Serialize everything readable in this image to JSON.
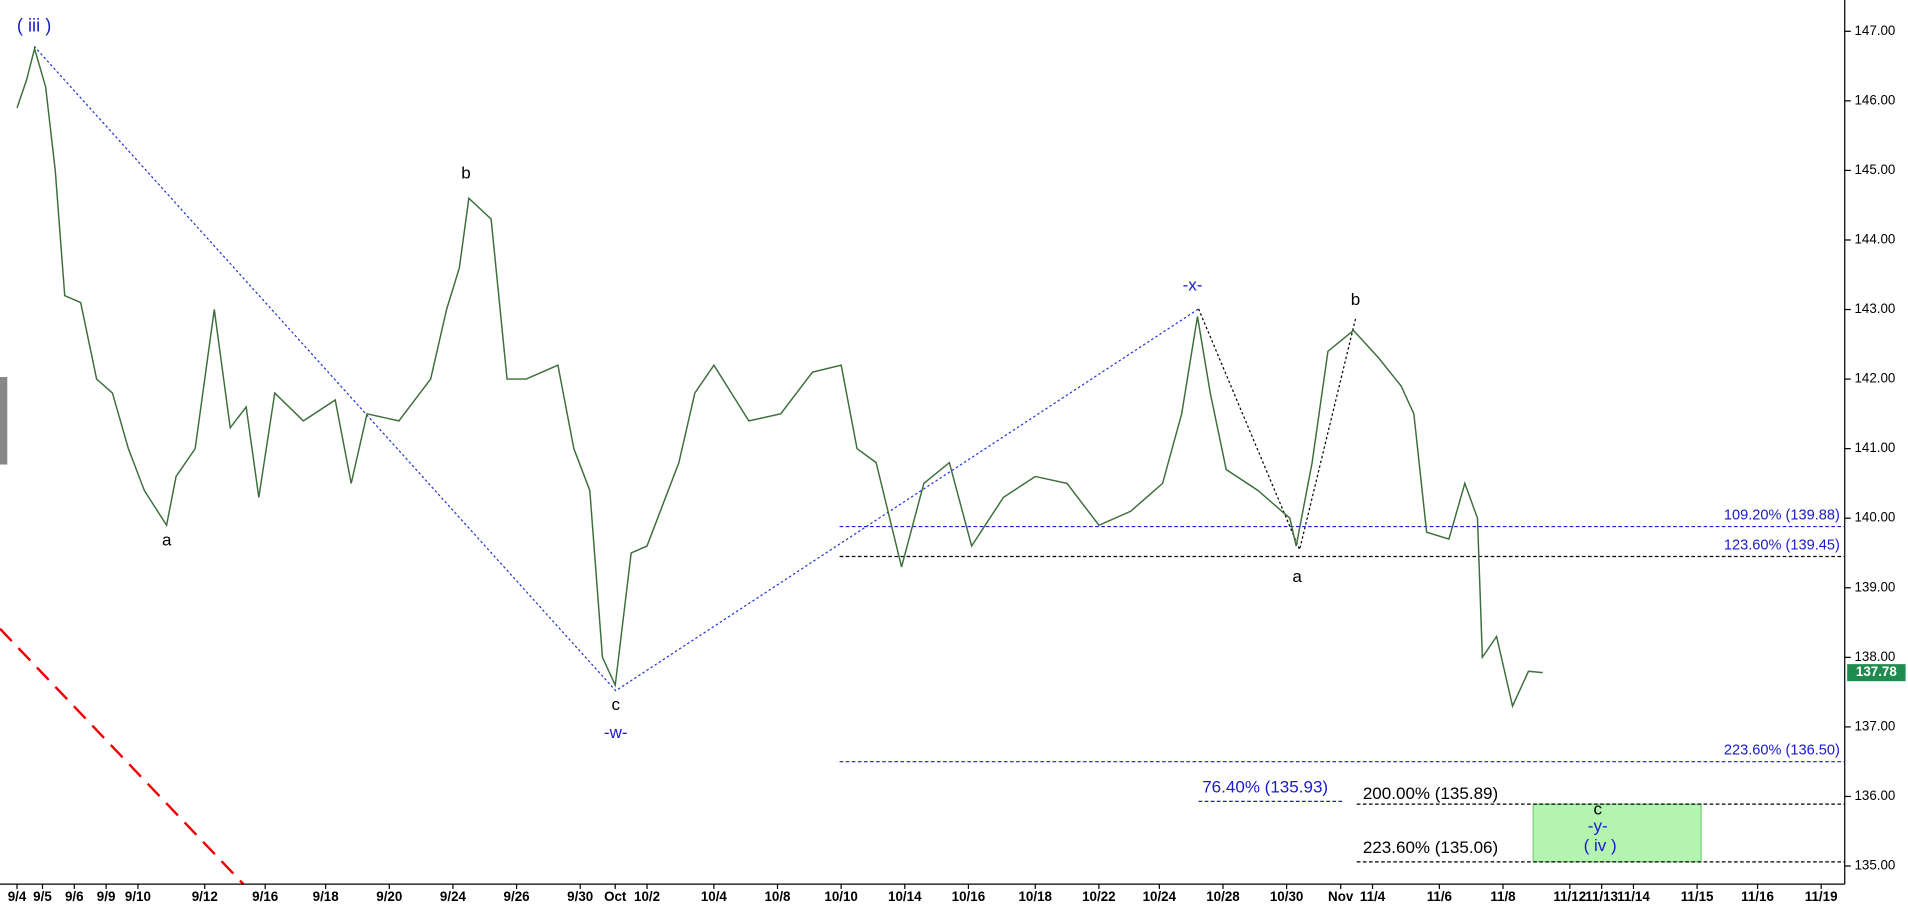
{
  "chart_data": {
    "type": "line",
    "color": "#3c6e3c",
    "x": [
      0,
      0.3,
      0.55,
      0.9,
      1.2,
      1.5,
      2,
      2.5,
      3,
      3.5,
      4,
      4.7,
      5,
      5.6,
      6.2,
      6.7,
      7.2,
      7.6,
      8.1,
      9,
      10,
      10.5,
      11,
      12,
      13,
      13.5,
      13.9,
      14.2,
      14.9,
      15.4,
      16,
      17,
      17.5,
      18,
      18.4,
      18.8,
      19.3,
      19.8,
      20.8,
      21.3,
      21.9,
      23,
      24,
      25,
      25.9,
      26.4,
      27,
      27.8,
      28.5,
      29.3,
      30,
      31,
      32,
      33,
      34,
      35,
      36,
      36.6,
      37.1,
      37.5,
      38,
      39,
      40,
      40.2,
      40.7,
      41.2,
      42,
      42.8,
      43.5,
      43.9,
      44.3,
      45,
      45.5,
      45.9,
      46.05,
      46.5,
      47,
      47.5,
      47.95
    ],
    "values": [
      145.9,
      146.3,
      146.75,
      146.2,
      145.0,
      143.2,
      143.1,
      142.0,
      141.8,
      141.0,
      140.4,
      139.9,
      140.6,
      141.0,
      143.0,
      141.3,
      141.6,
      140.3,
      141.8,
      141.4,
      141.7,
      140.5,
      141.5,
      141.4,
      142.0,
      143.0,
      143.6,
      144.6,
      144.3,
      142.0,
      142.0,
      142.2,
      141.0,
      140.4,
      138.0,
      137.6,
      139.5,
      139.6,
      140.8,
      141.8,
      142.2,
      141.4,
      141.5,
      142.1,
      142.2,
      141.0,
      140.8,
      139.3,
      140.5,
      140.8,
      139.6,
      140.3,
      140.6,
      140.5,
      139.9,
      140.1,
      140.5,
      141.5,
      142.9,
      141.8,
      140.7,
      140.4,
      140.0,
      139.6,
      140.8,
      142.4,
      142.7,
      142.3,
      141.9,
      141.5,
      139.8,
      139.7,
      140.5,
      140.0,
      138.0,
      138.3,
      137.3,
      137.8,
      137.78
    ],
    "last_price": 137.78,
    "xlim": [
      -0.535,
      57.44
    ],
    "ylim": [
      134.74,
      147.45
    ],
    "yticks": [
      {
        "value": 135,
        "label": "135.00"
      },
      {
        "value": 136,
        "label": "136.00"
      },
      {
        "value": 137,
        "label": "137.00"
      },
      {
        "value": 138,
        "label": "138.00"
      },
      {
        "value": 139,
        "label": "139.00"
      },
      {
        "value": 140,
        "label": "140.00"
      },
      {
        "value": 141,
        "label": "141.00"
      },
      {
        "value": 142,
        "label": "142.00"
      },
      {
        "value": 143,
        "label": "143.00"
      },
      {
        "value": 144,
        "label": "144.00"
      },
      {
        "value": 145,
        "label": "145.00"
      },
      {
        "value": 146,
        "label": "146.00"
      },
      {
        "value": 147,
        "label": "147.00"
      }
    ],
    "xticks": [
      {
        "value": 0,
        "label": "9/4"
      },
      {
        "value": 0.8,
        "label": "9/5"
      },
      {
        "value": 1.8,
        "label": "9/6"
      },
      {
        "value": 2.8,
        "label": "9/9"
      },
      {
        "value": 3.8,
        "label": "9/10"
      },
      {
        "value": 5.9,
        "label": "9/12"
      },
      {
        "value": 7.8,
        "label": "9/16"
      },
      {
        "value": 9.7,
        "label": "9/18"
      },
      {
        "value": 11.7,
        "label": "9/20"
      },
      {
        "value": 13.7,
        "label": "9/24"
      },
      {
        "value": 15.7,
        "label": "9/26"
      },
      {
        "value": 17.7,
        "label": "9/30"
      },
      {
        "value": 18.8,
        "label": "Oct"
      },
      {
        "value": 19.8,
        "label": "10/2"
      },
      {
        "value": 21.9,
        "label": "10/4"
      },
      {
        "value": 23.9,
        "label": "10/8"
      },
      {
        "value": 25.9,
        "label": "10/10"
      },
      {
        "value": 27.9,
        "label": "10/14"
      },
      {
        "value": 29.9,
        "label": "10/16"
      },
      {
        "value": 32,
        "label": "10/18"
      },
      {
        "value": 34,
        "label": "10/22"
      },
      {
        "value": 35.9,
        "label": "10/24"
      },
      {
        "value": 37.9,
        "label": "10/28"
      },
      {
        "value": 39.9,
        "label": "10/30"
      },
      {
        "value": 41.6,
        "label": "Nov"
      },
      {
        "value": 42.6,
        "label": "11/4"
      },
      {
        "value": 44.7,
        "label": "11/6"
      },
      {
        "value": 46.7,
        "label": "11/8"
      },
      {
        "value": 48.8,
        "label": "11/12"
      },
      {
        "value": 49.8,
        "label": "11/13"
      },
      {
        "value": 50.8,
        "label": "11/14"
      },
      {
        "value": 52.8,
        "label": "11/15"
      },
      {
        "value": 54.7,
        "label": "11/16"
      },
      {
        "value": 56.7,
        "label": "11/19"
      }
    ],
    "fib_levels": [
      {
        "value": 139.88,
        "label": "109.20% (139.88)"
      },
      {
        "value": 139.45,
        "label": "123.60% (139.45)"
      },
      {
        "value": 136.5,
        "label": "223.60% (136.50)"
      },
      {
        "value": 135.93,
        "label": "76.40% (135.93)"
      },
      {
        "value": 135.89,
        "label": "200.00% (135.89)"
      },
      {
        "value": 135.06,
        "label": "223.60% (135.06)"
      }
    ],
    "wave_labels": [
      "( iii )",
      "a",
      "b",
      "c",
      "-w-",
      "-x-",
      "b",
      "a",
      "c",
      "-y-",
      "( iv )"
    ]
  }
}
